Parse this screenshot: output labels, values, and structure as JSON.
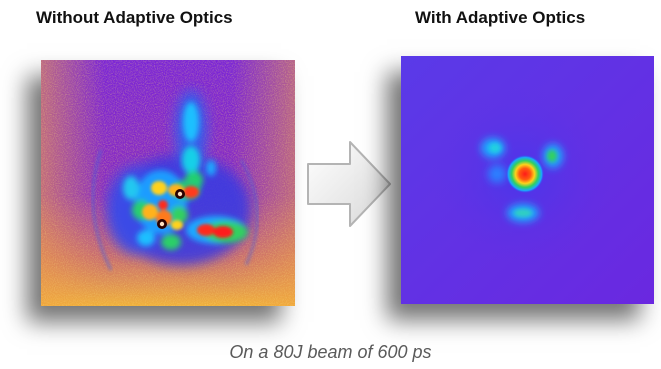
{
  "left_panel": {
    "title": "Without Adaptive Optics",
    "image": "aberrated-laser-focal-spot-heatmap"
  },
  "right_panel": {
    "title": "With Adaptive Optics",
    "image": "corrected-laser-focal-spot-heatmap"
  },
  "arrow": {
    "icon": "right-arrow-icon"
  },
  "caption": "On a 80J beam of 600 ps",
  "colors": {
    "background_low": "#6a1fe0",
    "background_high": "#f5b530",
    "peak": "#ff1a1a",
    "mid": "#22c55e",
    "low": "#1e90ff"
  }
}
